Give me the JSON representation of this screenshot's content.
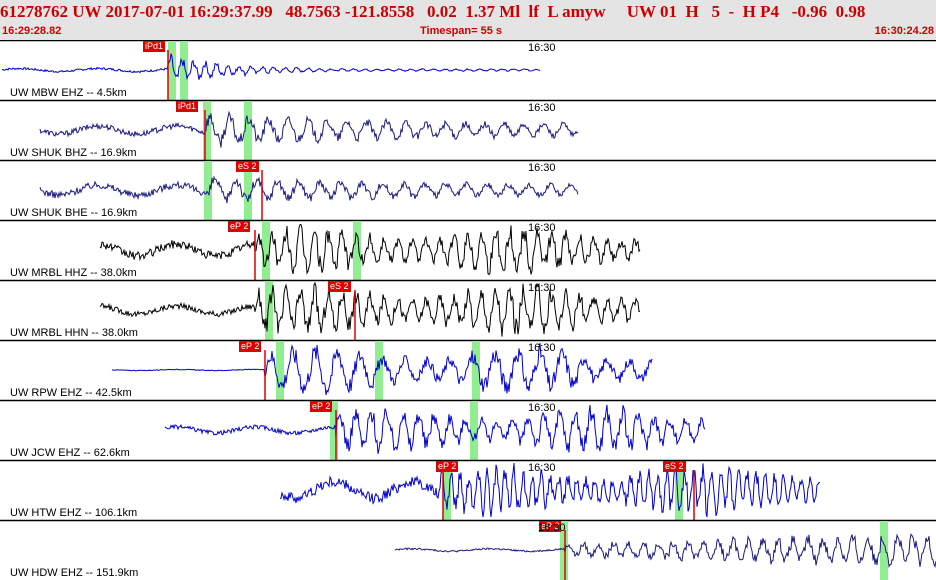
{
  "header": {
    "event_line": "61278762 UW 2017-07-01 16:29:37.99   48.7563 -121.8558   0.02  1.37 Ml  lf  L amyw     UW 01  H   5  -  H P4   -0.96  0.98",
    "start_time": "16:29:28.82",
    "timespan": "Timespan=  55 s",
    "end_time": "16:30:24.28"
  },
  "colors": {
    "header_text": "#cc0000",
    "pick_box": "#e00000",
    "pick_window": "#90ee90",
    "trace_blue": "#0000cc",
    "trace_black": "#000000",
    "trace_dark_blue": "#1a1a80"
  },
  "panels": [
    {
      "label": "UW MBW EHZ -- 4.5km",
      "time_mark": "16:30",
      "picks": [
        {
          "label": "iPd1"
        }
      ]
    },
    {
      "label": "UW SHUK BHZ -- 16.9km",
      "time_mark": "16:30",
      "picks": [
        {
          "label": "iPd1"
        }
      ]
    },
    {
      "label": "UW SHUK BHE -- 16.9km",
      "time_mark": "16:30",
      "picks": [
        {
          "label": "eS 2"
        }
      ]
    },
    {
      "label": "UW MRBL HHZ -- 38.0km",
      "time_mark": "16:30",
      "picks": [
        {
          "label": "eP 2"
        }
      ]
    },
    {
      "label": "UW MRBL HHN -- 38.0km",
      "time_mark": "16:30",
      "picks": [
        {
          "label": "eS 2"
        }
      ]
    },
    {
      "label": "UW RPW EHZ -- 42.5km",
      "time_mark": "16:30",
      "picks": [
        {
          "label": "eP 2"
        }
      ]
    },
    {
      "label": "UW JCW EHZ -- 62.6km",
      "time_mark": "16:30",
      "picks": [
        {
          "label": "eP 2"
        }
      ]
    },
    {
      "label": "UW HTW EHZ -- 106.1km",
      "time_mark": "16:30",
      "picks": [
        {
          "label": "eP 2"
        },
        {
          "label": "eS 2"
        }
      ]
    },
    {
      "label": "UW HDW EHZ -- 151.9km",
      "time_mark": "16:30",
      "picks": [
        {
          "label": "eP 2"
        }
      ]
    }
  ]
}
